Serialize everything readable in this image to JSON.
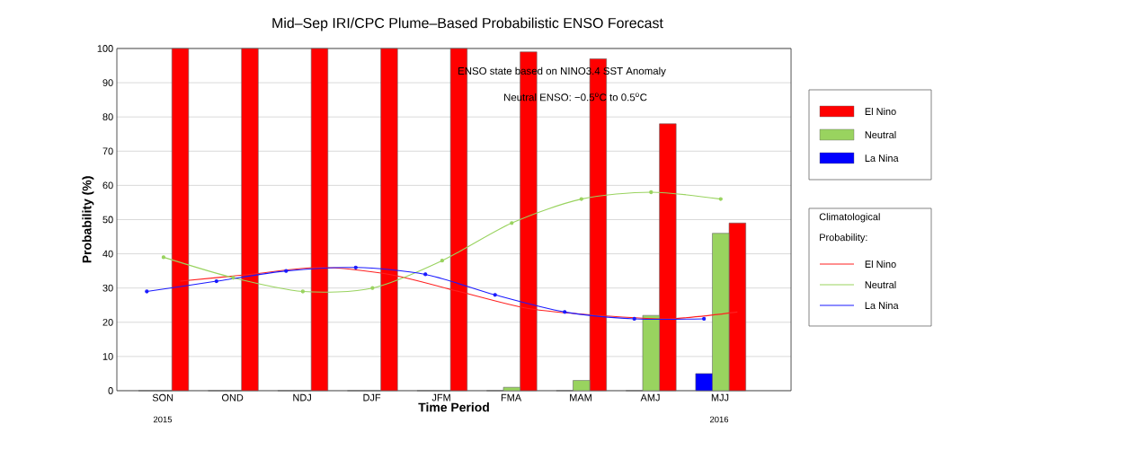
{
  "chart_data": {
    "type": "bar",
    "title": "Mid–Sep IRI/CPC Plume–Based Probabilistic ENSO Forecast",
    "xlabel": "Time Period",
    "ylabel": "Probability (%)",
    "legend_title": "Climatological Probability:",
    "categories": [
      "SON",
      "OND",
      "NDJ",
      "DJF",
      "JFM",
      "FMA",
      "MAM",
      "AMJ",
      "MJJ"
    ],
    "series": [
      {
        "name": "El Nino",
        "color": "#ff0000",
        "values": [
          100,
          100,
          100,
          100,
          100,
          99,
          97,
          78,
          49
        ]
      },
      {
        "name": "Neutral",
        "color": "#99d35f",
        "values": [
          0,
          0,
          0,
          0,
          0,
          1,
          3,
          22,
          46
        ]
      },
      {
        "name": "La Nina",
        "color": "#0000ff",
        "values": [
          0,
          0,
          0,
          0,
          0,
          0,
          0,
          0,
          5
        ]
      },
      {
        "name": "El Nino",
        "type": "line",
        "color": "#ff2020",
        "marker": "none",
        "values": [
          32,
          34,
          36,
          34,
          29,
          24,
          22,
          21,
          23
        ]
      },
      {
        "name": "Neutral",
        "type": "line",
        "color": "#99d35f",
        "marker": "circle",
        "values": [
          39,
          33,
          29,
          30,
          38,
          49,
          56,
          58,
          56
        ]
      },
      {
        "name": "La Nina",
        "type": "line",
        "color": "#1a1aff",
        "marker": "circle",
        "values": [
          29,
          32,
          35,
          36,
          34,
          28,
          23,
          21,
          21
        ]
      }
    ],
    "ylim": [
      0,
      100
    ],
    "yticks": [
      0,
      10,
      20,
      30,
      40,
      50,
      60,
      70,
      80,
      90,
      100
    ],
    "grid": "y",
    "legend": "right",
    "annotations": [
      "ENSO state based on NINO3.4 SST Anomaly",
      "Neutral ENSO: −0.5$^{o}$C to 0.5$^{o}$C",
      "2015",
      "2016"
    ]
  }
}
